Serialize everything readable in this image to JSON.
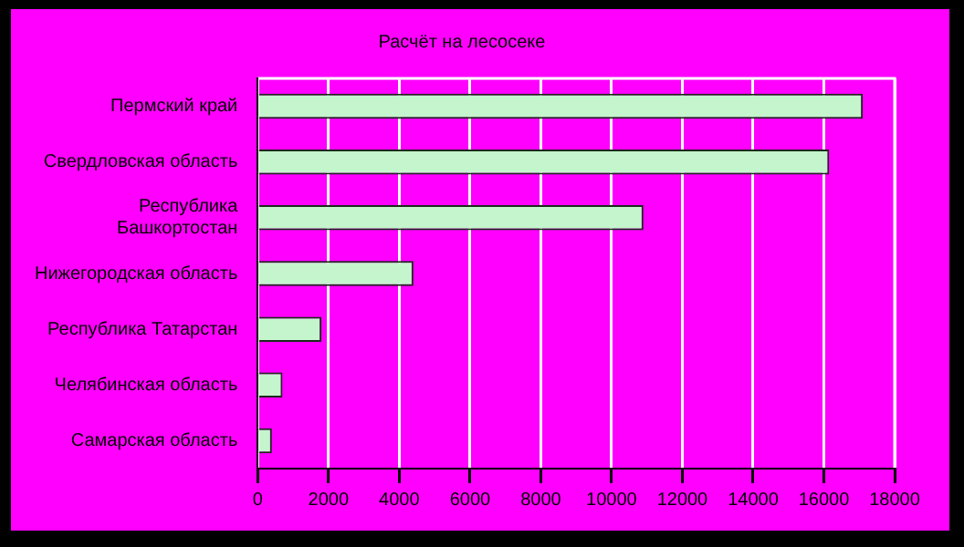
{
  "chart_data": {
    "type": "bar",
    "orientation": "horizontal",
    "title": "Расчёт на лесосеке",
    "categories": [
      "Пермский край",
      "Свердловская область",
      "Республика Башкортостан",
      "Нижегородская область",
      "Республика Татарстан",
      "Челябинская область",
      "Самарская область"
    ],
    "values": [
      17100,
      16150,
      10900,
      4400,
      1800,
      700,
      400
    ],
    "color": "#c4f5cc",
    "xlim": [
      0,
      18000
    ],
    "xticks": [
      0,
      2000,
      4000,
      6000,
      8000,
      10000,
      12000,
      14000,
      16000,
      18000
    ],
    "grid": "x",
    "legend": false
  }
}
